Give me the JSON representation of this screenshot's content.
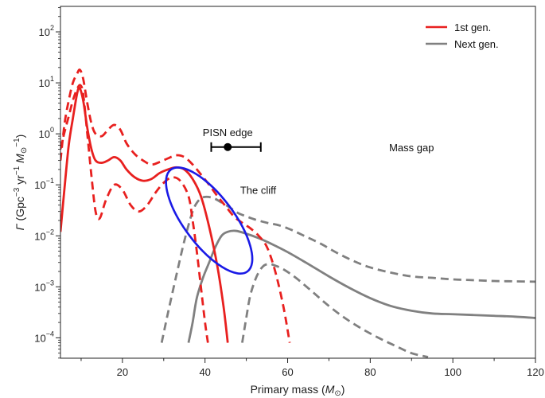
{
  "chart_data": {
    "type": "line",
    "xlabel": "Primary mass (M⊙)",
    "ylabel": "Γ (Gpc−3 yr−1 M⊙−1)",
    "xlim": [
      5,
      120
    ],
    "ylim_log10": [
      -4.4,
      2.5
    ],
    "yscale": "log",
    "xticks": [
      20,
      40,
      60,
      80,
      100,
      120
    ],
    "xtick_labels": [
      "20",
      "40",
      "60",
      "80",
      "100",
      "120"
    ],
    "yticks_log10": [
      -4,
      -3,
      -2,
      -1,
      0,
      1,
      2
    ],
    "ytick_labels": [
      {
        "base": "10",
        "exp": "−4"
      },
      {
        "base": "10",
        "exp": "−3"
      },
      {
        "base": "10",
        "exp": "−2"
      },
      {
        "base": "10",
        "exp": "−1"
      },
      {
        "base": "10",
        "exp": "0"
      },
      {
        "base": "10",
        "exp": "1"
      },
      {
        "base": "10",
        "exp": "2"
      }
    ],
    "legend": {
      "placement": "top-right",
      "entries": [
        {
          "label": "1st gen.",
          "color": "#e8201f"
        },
        {
          "label": "Next gen.",
          "color": "#808080"
        }
      ]
    },
    "series": [
      {
        "name": "1st gen.",
        "role": "median",
        "color": "#e8201f",
        "style": "solid",
        "points": [
          [
            5,
            0.012
          ],
          [
            6,
            0.09
          ],
          [
            7,
            0.6
          ],
          [
            8,
            2.0
          ],
          [
            9,
            6.0
          ],
          [
            9.6,
            8.0
          ],
          [
            10.5,
            4.5
          ],
          [
            11.5,
            1.3
          ],
          [
            12.5,
            0.5
          ],
          [
            13.5,
            0.3
          ],
          [
            15,
            0.27
          ],
          [
            16.5,
            0.3
          ],
          [
            18,
            0.35
          ],
          [
            19.5,
            0.3
          ],
          [
            21,
            0.2
          ],
          [
            23,
            0.14
          ],
          [
            25,
            0.12
          ],
          [
            27,
            0.13
          ],
          [
            29,
            0.17
          ],
          [
            31,
            0.2
          ],
          [
            33,
            0.22
          ],
          [
            35,
            0.2
          ],
          [
            37,
            0.13
          ],
          [
            39,
            0.06
          ],
          [
            41,
            0.015
          ],
          [
            43,
            0.0025
          ],
          [
            44.5,
            0.0004
          ],
          [
            45.5,
            8e-05
          ]
        ]
      },
      {
        "name": "1st gen.",
        "role": "upper bound",
        "color": "#e8201f",
        "style": "dashed",
        "points": [
          [
            5,
            0.3
          ],
          [
            6,
            1.6
          ],
          [
            7,
            4.5
          ],
          [
            8,
            10
          ],
          [
            9,
            15
          ],
          [
            9.7,
            18
          ],
          [
            10.5,
            12
          ],
          [
            11.5,
            4.0
          ],
          [
            12.5,
            1.6
          ],
          [
            13.5,
            1.0
          ],
          [
            15,
            0.9
          ],
          [
            16.5,
            1.2
          ],
          [
            18,
            1.5
          ],
          [
            19.5,
            1.2
          ],
          [
            21,
            0.65
          ],
          [
            23,
            0.4
          ],
          [
            25,
            0.3
          ],
          [
            27,
            0.25
          ],
          [
            29,
            0.28
          ],
          [
            31,
            0.33
          ],
          [
            33,
            0.38
          ],
          [
            35,
            0.35
          ],
          [
            37,
            0.25
          ],
          [
            39,
            0.16
          ],
          [
            41,
            0.1
          ],
          [
            43,
            0.06
          ],
          [
            45,
            0.038
          ],
          [
            47,
            0.024
          ],
          [
            49,
            0.018
          ],
          [
            51,
            0.014
          ],
          [
            53,
            0.01
          ],
          [
            55,
            0.006
          ],
          [
            57,
            0.002
          ],
          [
            59,
            0.0004
          ],
          [
            60.5,
            8e-05
          ]
        ]
      },
      {
        "name": "1st gen.",
        "role": "lower bound",
        "color": "#e8201f",
        "style": "dashed",
        "points": [
          [
            5,
            0.5
          ],
          [
            6,
            1.1
          ],
          [
            7,
            2.2
          ],
          [
            8,
            4.5
          ],
          [
            9,
            7.5
          ],
          [
            9.8,
            9.0
          ],
          [
            10.5,
            6.0
          ],
          [
            11.5,
            1.0
          ],
          [
            12.5,
            0.15
          ],
          [
            13.5,
            0.03
          ],
          [
            14.5,
            0.022
          ],
          [
            16,
            0.05
          ],
          [
            18,
            0.1
          ],
          [
            20,
            0.08
          ],
          [
            22,
            0.04
          ],
          [
            24,
            0.03
          ],
          [
            26,
            0.04
          ],
          [
            28,
            0.07
          ],
          [
            30,
            0.11
          ],
          [
            32,
            0.14
          ],
          [
            34,
            0.12
          ],
          [
            36,
            0.06
          ],
          [
            37,
            0.02
          ],
          [
            38,
            0.005
          ],
          [
            39,
            0.001
          ],
          [
            40,
            0.0002
          ],
          [
            40.7,
            8e-05
          ]
        ]
      },
      {
        "name": "Next gen.",
        "role": "median",
        "color": "#808080",
        "style": "solid",
        "points": [
          [
            36,
            8e-05
          ],
          [
            37,
            0.0002
          ],
          [
            38,
            0.0006
          ],
          [
            39.5,
            0.0015
          ],
          [
            41,
            0.003
          ],
          [
            42.5,
            0.006
          ],
          [
            44,
            0.01
          ],
          [
            45.5,
            0.012
          ],
          [
            47.5,
            0.0125
          ],
          [
            50,
            0.011
          ],
          [
            53,
            0.009
          ],
          [
            56,
            0.007
          ],
          [
            60,
            0.0048
          ],
          [
            65,
            0.0028
          ],
          [
            70,
            0.0016
          ],
          [
            75,
            0.00095
          ],
          [
            80,
            0.0006
          ],
          [
            85,
            0.00042
          ],
          [
            90,
            0.00034
          ],
          [
            95,
            0.0003
          ],
          [
            100,
            0.00029
          ],
          [
            105,
            0.00028
          ],
          [
            110,
            0.00027
          ],
          [
            115,
            0.00026
          ],
          [
            120,
            0.000245
          ]
        ]
      },
      {
        "name": "Next gen.",
        "role": "upper bound",
        "color": "#808080",
        "style": "dashed",
        "points": [
          [
            29.5,
            8e-05
          ],
          [
            31,
            0.0003
          ],
          [
            33,
            0.0016
          ],
          [
            35,
            0.008
          ],
          [
            37,
            0.03
          ],
          [
            38.5,
            0.05
          ],
          [
            40,
            0.058
          ],
          [
            42,
            0.055
          ],
          [
            44,
            0.045
          ],
          [
            46,
            0.036
          ],
          [
            48,
            0.028
          ],
          [
            50,
            0.024
          ],
          [
            52,
            0.021
          ],
          [
            55,
            0.018
          ],
          [
            58,
            0.016
          ],
          [
            61,
            0.013
          ],
          [
            64,
            0.01
          ],
          [
            68,
            0.007
          ],
          [
            72,
            0.0046
          ],
          [
            76,
            0.0032
          ],
          [
            80,
            0.0024
          ],
          [
            85,
            0.0019
          ],
          [
            90,
            0.0016
          ],
          [
            95,
            0.0015
          ],
          [
            100,
            0.0014
          ],
          [
            105,
            0.00135
          ],
          [
            110,
            0.0013
          ],
          [
            115,
            0.00128
          ],
          [
            120,
            0.00126
          ]
        ]
      },
      {
        "name": "Next gen.",
        "role": "lower bound",
        "color": "#808080",
        "style": "dashed",
        "points": [
          [
            49,
            8e-05
          ],
          [
            50,
            0.00025
          ],
          [
            51,
            0.0007
          ],
          [
            52.5,
            0.0016
          ],
          [
            54,
            0.0025
          ],
          [
            55.5,
            0.0028
          ],
          [
            57,
            0.0026
          ],
          [
            59,
            0.0022
          ],
          [
            62,
            0.0015
          ],
          [
            66,
            0.0008
          ],
          [
            70,
            0.00042
          ],
          [
            74,
            0.00024
          ],
          [
            78,
            0.00015
          ],
          [
            82,
            0.0001
          ],
          [
            86,
            7e-05
          ],
          [
            90,
            5e-05
          ],
          [
            94,
            4.2e-05
          ]
        ]
      }
    ],
    "annotations": {
      "pisn_edge": {
        "label": "PISN edge",
        "x": 45.5,
        "xerr_low": 41.5,
        "xerr_high": 53.5,
        "y": 0.55
      },
      "mass_gap": {
        "label": "Mass gap",
        "x": 90,
        "y": 0.55
      },
      "cliff": {
        "label": "The cliff",
        "color": "#1a1ae6",
        "cx": 41,
        "cy_log10": -1.7,
        "rx_mass": 6,
        "ry_log10": 1.25,
        "rotation_deg": -37
      }
    }
  }
}
